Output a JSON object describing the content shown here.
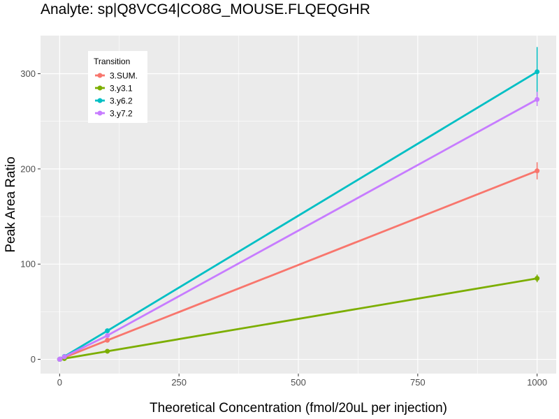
{
  "chart_data": {
    "type": "line",
    "title": "Analyte: sp|Q8VCG4|CO8G_MOUSE.FLQEQGHR",
    "xlabel": "Theoretical Concentration (fmol/20uL per injection)",
    "ylabel": "Peak Area Ratio",
    "xlim": [
      -40,
      1040
    ],
    "ylim": [
      -15,
      340
    ],
    "x_ticks": [
      0,
      250,
      500,
      750,
      1000
    ],
    "y_ticks": [
      0,
      100,
      200,
      300
    ],
    "grid": true,
    "legend": {
      "title": "Transition",
      "position": "top-left"
    },
    "x": [
      0,
      1,
      10,
      100,
      1000
    ],
    "series": [
      {
        "name": "3.SUM.",
        "color": "#F8766D",
        "values": [
          0,
          0.2,
          2,
          20,
          198
        ],
        "error_high": [
          0,
          0,
          0,
          0,
          207
        ],
        "error_low": [
          0,
          0,
          0,
          0,
          189
        ]
      },
      {
        "name": "3.y3.1",
        "color": "#7CAE00",
        "values": [
          0,
          0.1,
          0.8,
          8.5,
          85
        ],
        "error_high": [
          0,
          0,
          0,
          0,
          89
        ],
        "error_low": [
          0,
          0,
          0,
          0,
          81
        ]
      },
      {
        "name": "3.y6.2",
        "color": "#00BFC4",
        "values": [
          0,
          0.3,
          3,
          30,
          302
        ],
        "error_high": [
          0,
          0,
          0,
          0,
          328
        ],
        "error_low": [
          0,
          0,
          0,
          0,
          276
        ]
      },
      {
        "name": "3.y7.2",
        "color": "#C77CFF",
        "values": [
          0,
          0.3,
          2.7,
          25,
          273
        ],
        "error_high": [
          0,
          0,
          0,
          0,
          281
        ],
        "error_low": [
          0,
          0,
          0,
          0,
          266
        ]
      }
    ]
  }
}
